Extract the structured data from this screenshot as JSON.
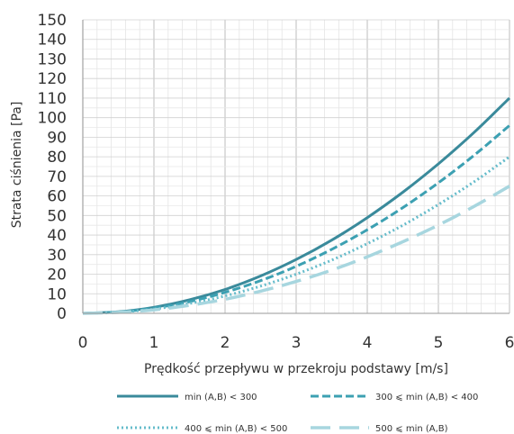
{
  "chart_data": {
    "type": "line",
    "xlabel": "Prędkość przepływu w przekroju podstawy [m/s]",
    "ylabel": "Strata ciśnienia [Pa]",
    "xlim": [
      0,
      6
    ],
    "ylim": [
      0,
      150
    ],
    "x_ticks": [
      0,
      1,
      2,
      3,
      4,
      5,
      6
    ],
    "y_ticks": [
      0,
      10,
      20,
      30,
      40,
      50,
      60,
      70,
      80,
      90,
      100,
      110,
      120,
      130,
      140,
      150
    ],
    "grid": true,
    "legend_position": "bottom",
    "x": [
      0,
      0.5,
      1,
      1.5,
      2,
      2.5,
      3,
      3.5,
      4,
      4.5,
      5,
      5.5,
      6
    ],
    "series": [
      {
        "name": "min (A,B) < 300",
        "style": "solid",
        "color": "#3a8a9b",
        "values": [
          0,
          0.8,
          3.1,
          6.9,
          12.2,
          19.1,
          27.5,
          37.4,
          48.9,
          61.9,
          76.4,
          92.4,
          110.0
        ]
      },
      {
        "name": "300 ⩽ min (A,B) < 400",
        "style": "dashed",
        "color": "#3ca0b2",
        "values": [
          0,
          0.7,
          2.7,
          6.0,
          10.7,
          16.7,
          24.0,
          32.7,
          42.7,
          54.0,
          66.7,
          80.7,
          96.0
        ]
      },
      {
        "name": "400 ⩽ min (A,B) < 500",
        "style": "dotted",
        "color": "#66bccb",
        "values": [
          0,
          0.6,
          2.2,
          5.0,
          8.9,
          13.9,
          20.0,
          27.2,
          35.6,
          45.0,
          55.6,
          67.2,
          80.0
        ]
      },
      {
        "name": "500 ⩽ min (A,B)",
        "style": "longdash",
        "color": "#a7d6df",
        "values": [
          0,
          0.5,
          1.8,
          4.1,
          7.2,
          11.3,
          16.3,
          22.1,
          28.9,
          36.6,
          45.1,
          54.6,
          65.0
        ]
      }
    ]
  }
}
